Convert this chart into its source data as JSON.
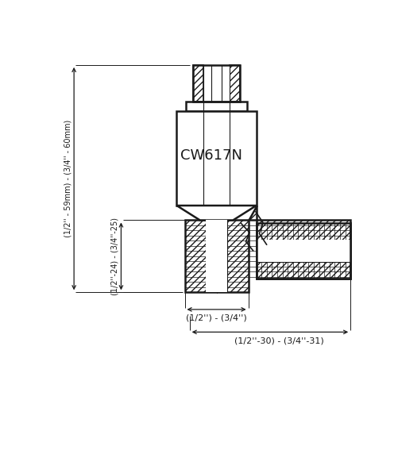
{
  "bg_color": "#ffffff",
  "line_color": "#1a1a1a",
  "label_cw617n": "CW617N",
  "dim_left_long": "(1/2'' - 59mm) - (3/4'' - 60mm)",
  "dim_left_short": "(1/2''-24) - (3/4''-25)",
  "dim_bottom_width": "(1/2'') - (3/4'')",
  "dim_bottom_long": "(1/2''-30) - (3/4''-31)",
  "fig_width": 5.01,
  "fig_height": 5.67,
  "dpi": 100
}
